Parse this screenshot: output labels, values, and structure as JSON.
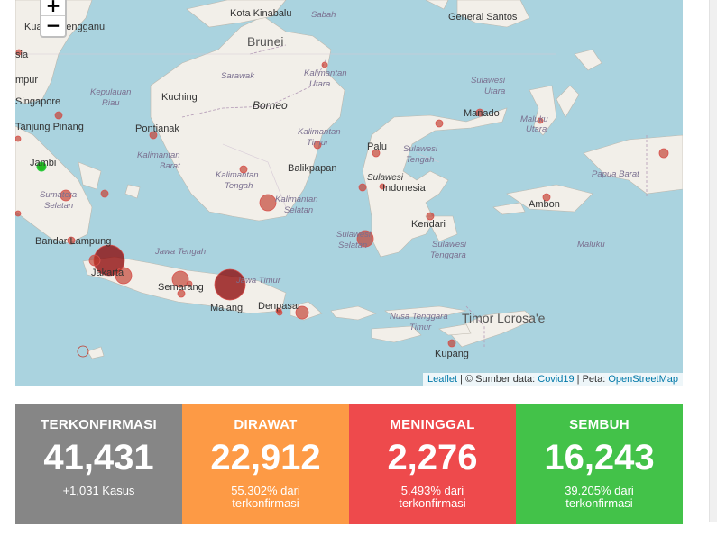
{
  "map": {
    "zoom_in": "+",
    "zoom_out": "−",
    "attribution": {
      "leaflet": "Leaflet",
      "source_prefix": "| © Sumber data:",
      "source": "Covid19",
      "map_prefix": "| Peta:",
      "map": "OpenStreetMap"
    },
    "place_labels": {
      "kota_kinabalu": "Kota Kinabalu",
      "sabah": "Sabah",
      "general_santos": "General Santos",
      "kuala_terengganu": "Kuala Terengganu",
      "brunei": "Brunei",
      "sarawak": "Sarawak",
      "kalimantan_utara": [
        "Kalimantan",
        "Utara"
      ],
      "kuching": "Kuching",
      "borneo": "Borneo",
      "singapore": "Singapore",
      "kepulauan_riau": [
        "Kepulauan",
        "Riau"
      ],
      "tanjung_pinang": "Tanjung Pinang",
      "pontianak": "Pontianak",
      "kalimantan_timur": [
        "Kalimantan",
        "Timur"
      ],
      "manado": "Manado",
      "sulawesi_utara": [
        "Sulawesi",
        "Utara"
      ],
      "maluku_utara": [
        "Maluku",
        "Utara"
      ],
      "kalimantan_barat": [
        "Kalimantan",
        "Barat"
      ],
      "balikpapan": "Balikpapan",
      "palu": "Palu",
      "sulawesi_tengah": [
        "Sulawesi",
        "Tengah"
      ],
      "jambi": "Jambi",
      "kalimantan_tengah": [
        "Kalimantan",
        "Tengah"
      ],
      "sulawesi": "Sulawesi",
      "indonesia": "Indonesia",
      "papua_barat": "Papua Barat",
      "sumatera_selatan": [
        "Sumatera",
        "Selatan"
      ],
      "kalimantan_selatan": [
        "Kalimantan",
        "Selatan"
      ],
      "ambon": "Ambon",
      "kendari": "Kendari",
      "bandar_lampung": "Bandar Lampung",
      "jawa_tengah": "Jawa Tengah",
      "sulawesi_selatan": [
        "Sulawesi",
        "Selatan"
      ],
      "sulawesi_tenggara": [
        "Sulawesi",
        "Tenggara"
      ],
      "maluku": "Maluku",
      "jakarta": "Jakarta",
      "semarang": "Semarang",
      "jawa_timur": "Jawa Timur",
      "malang": "Malang",
      "denpasar": "Denpasar",
      "nusa_tenggara_timur": [
        "Nusa Tenggara",
        "Timur"
      ],
      "timor_lorosae": "Timor Lorosa'e",
      "kupang": "Kupang",
      "sumatra_edge": "sia",
      "impur_edge": "mpur"
    }
  },
  "stats": [
    {
      "label": "TERKONFIRMASI",
      "value": "41,431",
      "sub": [
        "+1,031 Kasus"
      ],
      "color": "#868686"
    },
    {
      "label": "DIRAWAT",
      "value": "22,912",
      "sub": [
        "55.302% dari",
        "terkonfirmasi"
      ],
      "color": "#fd9a45"
    },
    {
      "label": "MENINGGAL",
      "value": "2,276",
      "sub": [
        "5.493% dari",
        "terkonfirmasi"
      ],
      "color": "#ee4a4c"
    },
    {
      "label": "SEMBUH",
      "value": "16,243",
      "sub": [
        "39.205% dari",
        "terkonfirmasi"
      ],
      "color": "#43c249"
    }
  ]
}
